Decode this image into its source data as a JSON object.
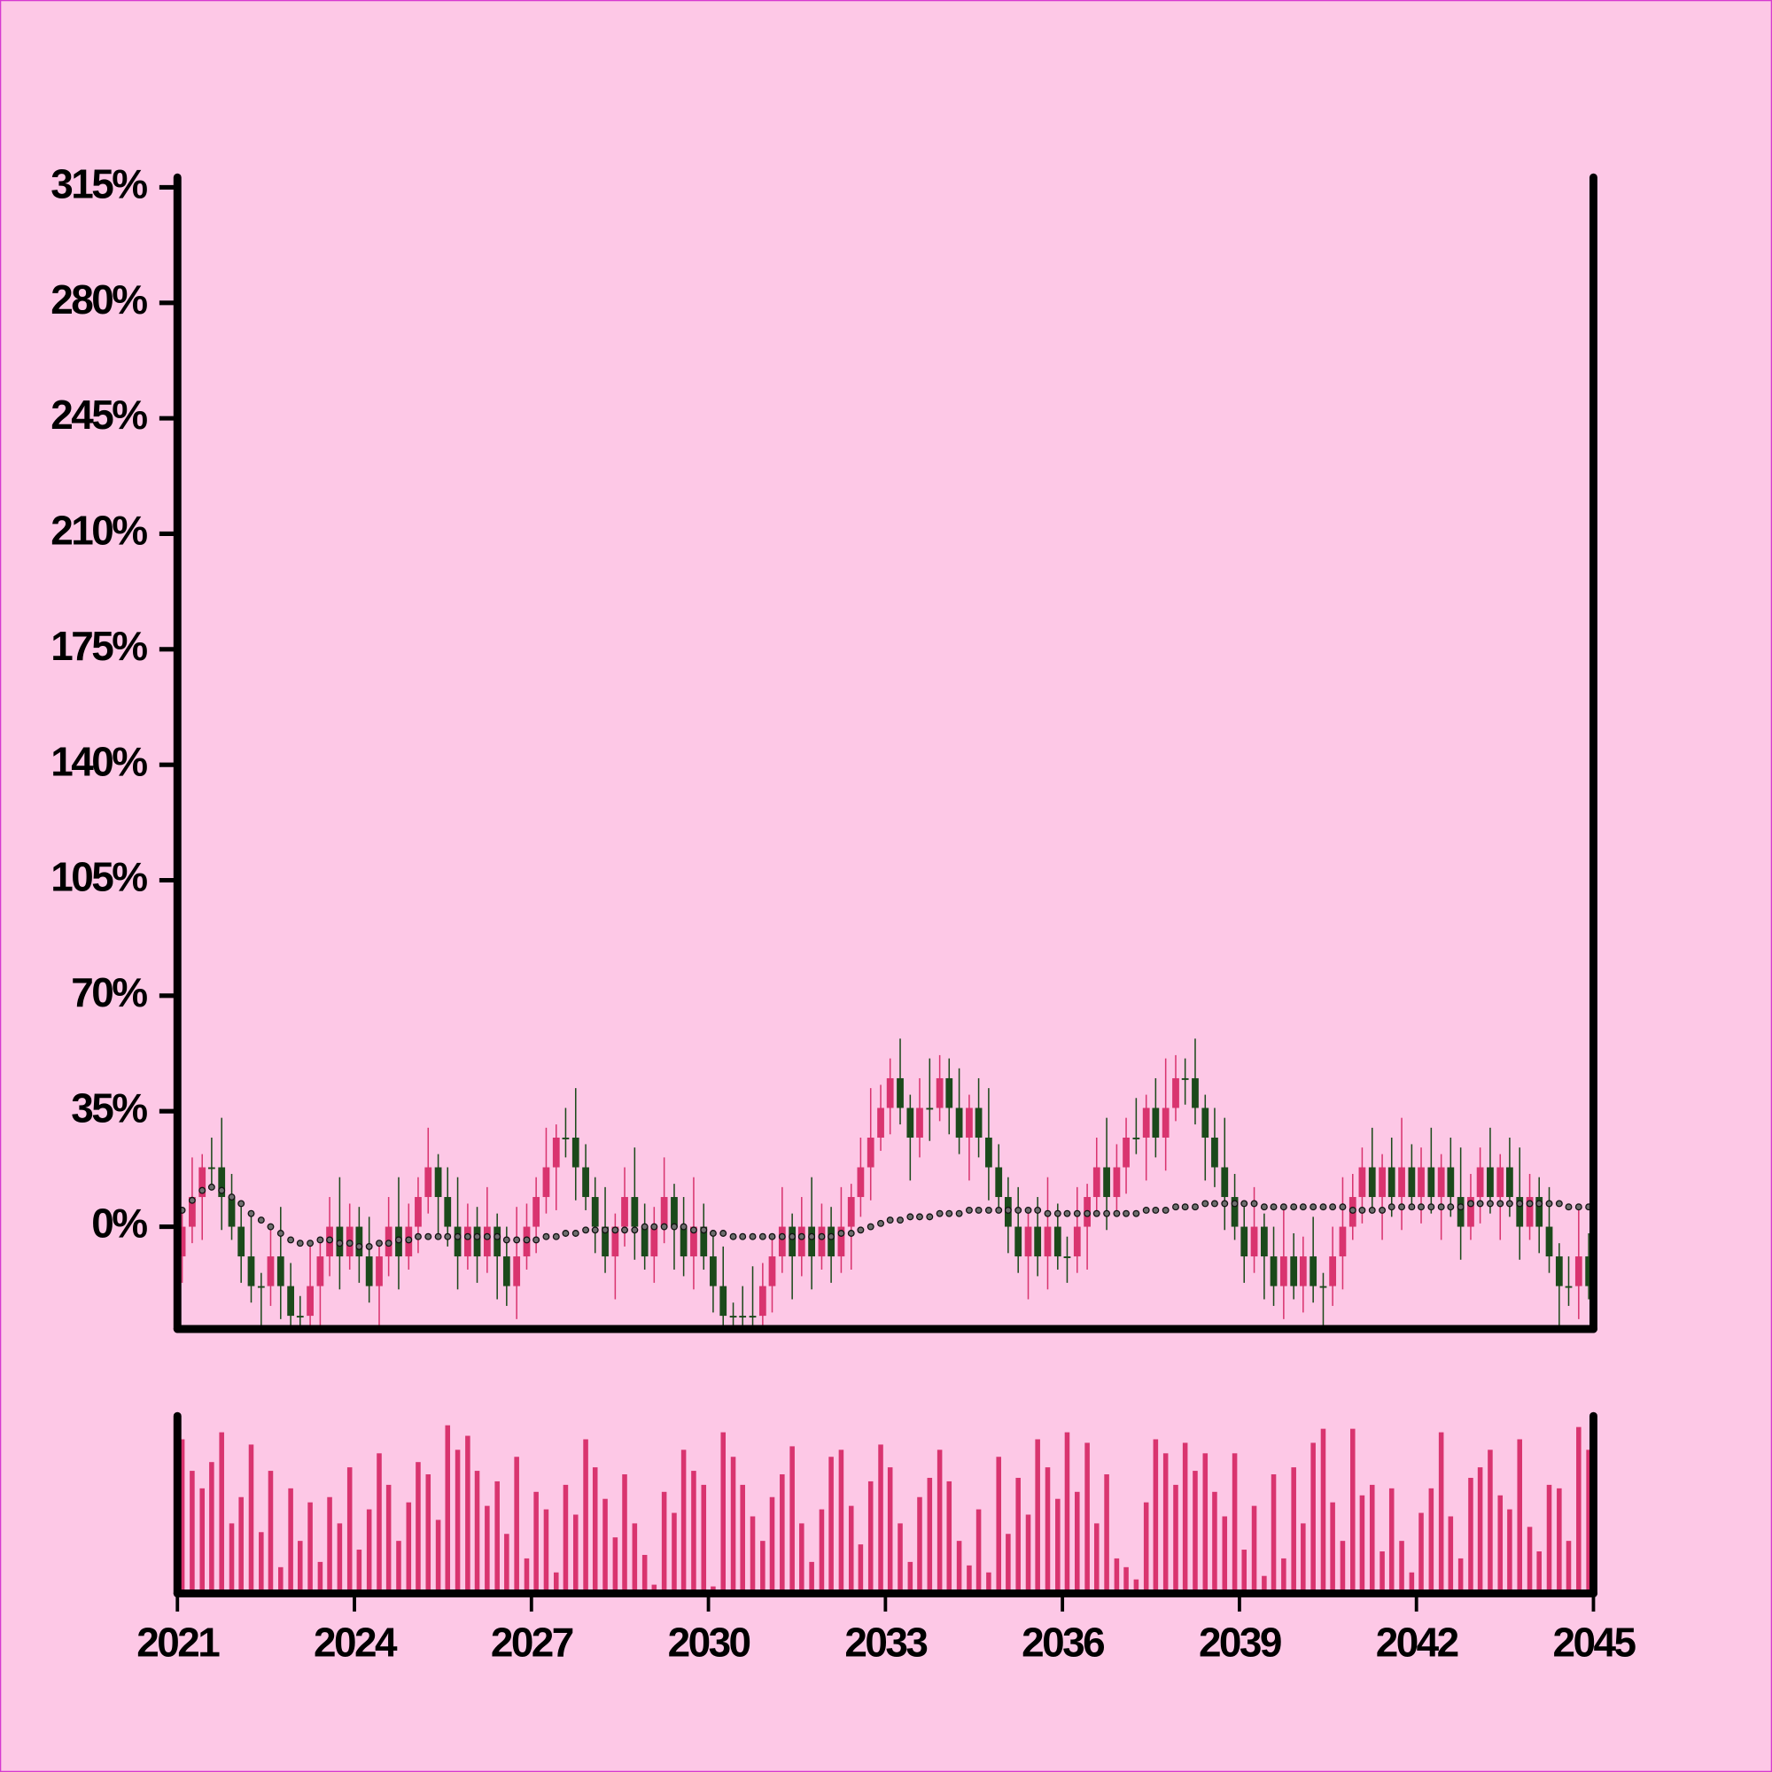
{
  "chart_data": {
    "type": "candlestick",
    "colors": {
      "up": "#d9346f",
      "down": "#1b4a1b",
      "volume": "#d9346f",
      "moving_average": "#6e6e6e"
    },
    "xlim": [
      2021,
      2045
    ],
    "xticks": [
      2021,
      2024,
      2027,
      2030,
      2033,
      2036,
      2039,
      2042,
      2045
    ],
    "ylim": [
      -31,
      318
    ],
    "yticks": [
      {
        "value": 0,
        "label": "0%"
      },
      {
        "value": 35,
        "label": "35%"
      },
      {
        "value": 70,
        "label": "70%"
      },
      {
        "value": 105,
        "label": "105%"
      },
      {
        "value": 140,
        "label": "140%"
      },
      {
        "value": 175,
        "label": "175%"
      },
      {
        "value": 210,
        "label": "210%"
      },
      {
        "value": 245,
        "label": "245%"
      },
      {
        "value": 280,
        "label": "280%"
      },
      {
        "value": 315,
        "label": "315%"
      }
    ],
    "volume_ylim": [
      0,
      100
    ],
    "x": [
      2021.08,
      2021.25,
      2021.42,
      2021.58,
      2021.75,
      2021.92,
      2022.08,
      2022.25,
      2022.42,
      2022.58,
      2022.75,
      2022.92,
      2023.08,
      2023.25,
      2023.42,
      2023.58,
      2023.75,
      2023.92,
      2024.08,
      2024.25,
      2024.42,
      2024.58,
      2024.75,
      2024.92,
      2025.08,
      2025.25,
      2025.42,
      2025.58,
      2025.75,
      2025.92,
      2026.08,
      2026.25,
      2026.42,
      2026.58,
      2026.75,
      2026.92,
      2027.08,
      2027.25,
      2027.42,
      2027.58,
      2027.75,
      2027.92,
      2028.08,
      2028.25,
      2028.42,
      2028.58,
      2028.75,
      2028.92,
      2029.08,
      2029.25,
      2029.42,
      2029.58,
      2029.75,
      2029.92,
      2030.08,
      2030.25,
      2030.42,
      2030.58,
      2030.75,
      2030.92,
      2031.08,
      2031.25,
      2031.42,
      2031.58,
      2031.75,
      2031.92,
      2032.08,
      2032.25,
      2032.42,
      2032.58,
      2032.75,
      2032.92,
      2033.08,
      2033.25,
      2033.42,
      2033.58,
      2033.75,
      2033.92,
      2034.08,
      2034.25,
      2034.42,
      2034.58,
      2034.75,
      2034.92,
      2035.08,
      2035.25,
      2035.42,
      2035.58,
      2035.75,
      2035.92,
      2036.08,
      2036.25,
      2036.42,
      2036.58,
      2036.75,
      2036.92,
      2037.08,
      2037.25,
      2037.42,
      2037.58,
      2037.75,
      2037.92,
      2038.08,
      2038.25,
      2038.42,
      2038.58,
      2038.75,
      2038.92,
      2039.08,
      2039.25,
      2039.42,
      2039.58,
      2039.75,
      2039.92,
      2040.08,
      2040.25,
      2040.42,
      2040.58,
      2040.75,
      2040.92,
      2041.08,
      2041.25,
      2041.42,
      2041.58,
      2041.75,
      2041.92,
      2042.08,
      2042.25,
      2042.42,
      2042.58,
      2042.75,
      2042.92,
      2043.08,
      2043.25,
      2043.42,
      2043.58,
      2043.75,
      2043.92,
      2044.08,
      2044.25,
      2044.42,
      2044.58,
      2044.75,
      2044.92
    ],
    "open": [
      -9,
      0,
      9,
      18,
      18,
      9,
      0,
      -9,
      -18,
      -18,
      -9,
      -18,
      -27,
      -27,
      -18,
      -9,
      0,
      -9,
      0,
      -9,
      -18,
      -9,
      0,
      -9,
      0,
      9,
      18,
      9,
      0,
      -9,
      0,
      -9,
      0,
      -9,
      -18,
      -9,
      0,
      9,
      18,
      27,
      27,
      18,
      9,
      0,
      -9,
      0,
      9,
      0,
      -9,
      0,
      9,
      0,
      -9,
      0,
      -9,
      -18,
      -27,
      -27,
      -27,
      -27,
      -18,
      -9,
      0,
      -9,
      0,
      -9,
      0,
      -9,
      0,
      9,
      18,
      27,
      36,
      45,
      36,
      27,
      36,
      36,
      45,
      36,
      27,
      36,
      27,
      18,
      9,
      0,
      -9,
      0,
      -9,
      0,
      -9,
      -9,
      0,
      9,
      18,
      9,
      18,
      27,
      27,
      36,
      27,
      36,
      45,
      45,
      36,
      27,
      18,
      9,
      0,
      -9,
      0,
      -9,
      -18,
      -9,
      -18,
      -9,
      -18,
      -18,
      -9,
      0,
      9,
      18,
      9,
      18,
      9,
      18,
      9,
      18,
      9,
      18,
      9,
      0,
      9,
      18,
      9,
      18,
      9,
      0,
      9,
      0,
      -9,
      -18,
      -18,
      -9
    ],
    "high": [
      6,
      21,
      22,
      27,
      33,
      16,
      6,
      3,
      -14,
      0,
      6,
      -11,
      -21,
      -6,
      -5,
      9,
      15,
      7,
      6,
      3,
      -5,
      9,
      15,
      7,
      15,
      30,
      22,
      18,
      15,
      7,
      6,
      12,
      4,
      0,
      6,
      7,
      15,
      30,
      31,
      36,
      42,
      25,
      15,
      12,
      4,
      18,
      24,
      7,
      6,
      21,
      13,
      9,
      15,
      7,
      -3,
      -6,
      -23,
      -18,
      -12,
      -11,
      -3,
      12,
      4,
      9,
      15,
      7,
      6,
      12,
      13,
      27,
      42,
      43,
      51,
      57,
      40,
      45,
      51,
      52,
      51,
      48,
      40,
      45,
      42,
      25,
      15,
      12,
      4,
      9,
      15,
      7,
      -3,
      12,
      13,
      27,
      33,
      25,
      33,
      39,
      40,
      45,
      51,
      52,
      51,
      57,
      40,
      36,
      33,
      16,
      6,
      12,
      4,
      0,
      6,
      -2,
      -3,
      3,
      -14,
      0,
      15,
      16,
      24,
      30,
      22,
      27,
      33,
      25,
      24,
      30,
      22,
      27,
      24,
      16,
      24,
      30,
      22,
      27,
      24,
      16,
      15,
      12,
      -5,
      -9,
      6,
      -2
    ],
    "low": [
      -17,
      -5,
      -4,
      12,
      -1,
      -4,
      -17,
      -23,
      -31,
      -24,
      -28,
      -31,
      -35,
      -32,
      -31,
      -15,
      -19,
      -13,
      -17,
      -23,
      -31,
      -15,
      -19,
      -13,
      -8,
      4,
      -4,
      -6,
      -19,
      -13,
      -17,
      -14,
      -22,
      -24,
      -28,
      -13,
      -8,
      4,
      5,
      21,
      8,
      5,
      -8,
      -14,
      -22,
      -6,
      -10,
      -13,
      -17,
      -5,
      -13,
      -15,
      -19,
      -13,
      -26,
      -32,
      -40,
      -33,
      -37,
      -31,
      -26,
      -14,
      -22,
      -15,
      -19,
      -13,
      -17,
      -14,
      -13,
      3,
      8,
      23,
      28,
      31,
      14,
      21,
      26,
      32,
      28,
      22,
      14,
      21,
      8,
      5,
      -8,
      -14,
      -22,
      -15,
      -19,
      -13,
      -17,
      -14,
      -13,
      3,
      -1,
      5,
      10,
      22,
      14,
      21,
      17,
      32,
      37,
      31,
      14,
      12,
      -1,
      -4,
      -17,
      -14,
      -22,
      -24,
      -28,
      -22,
      -26,
      -23,
      -31,
      -24,
      -19,
      -4,
      1,
      4,
      -4,
      3,
      -1,
      5,
      1,
      4,
      -4,
      3,
      -10,
      -4,
      1,
      4,
      -4,
      3,
      -10,
      -4,
      -8,
      -14,
      -31,
      -24,
      -28,
      -22
    ],
    "close": [
      0,
      9,
      18,
      18,
      9,
      0,
      -9,
      -18,
      -18,
      -9,
      -18,
      -27,
      -27,
      -18,
      -9,
      0,
      -9,
      0,
      -9,
      -18,
      -9,
      0,
      -9,
      0,
      9,
      18,
      9,
      0,
      -9,
      0,
      -9,
      0,
      -9,
      -18,
      -9,
      0,
      9,
      18,
      27,
      27,
      18,
      9,
      0,
      -9,
      0,
      9,
      0,
      -9,
      0,
      9,
      0,
      -9,
      0,
      -9,
      -18,
      -27,
      -27,
      -27,
      -27,
      -18,
      -9,
      0,
      -9,
      0,
      -9,
      0,
      -9,
      0,
      9,
      18,
      27,
      36,
      45,
      36,
      27,
      36,
      36,
      45,
      36,
      27,
      36,
      27,
      18,
      9,
      0,
      -9,
      0,
      -9,
      0,
      -9,
      -9,
      0,
      9,
      18,
      9,
      18,
      27,
      27,
      36,
      27,
      36,
      45,
      45,
      36,
      27,
      18,
      9,
      0,
      -9,
      0,
      -9,
      -18,
      -9,
      -18,
      -9,
      -18,
      -18,
      -9,
      0,
      9,
      18,
      9,
      18,
      9,
      18,
      9,
      18,
      9,
      18,
      9,
      0,
      9,
      18,
      9,
      18,
      9,
      0,
      9,
      0,
      -9,
      -18,
      -18,
      -9,
      -18
    ],
    "volume": [
      88,
      70,
      60,
      75,
      92,
      40,
      55,
      85,
      35,
      70,
      15,
      60,
      30,
      52,
      18,
      55,
      40,
      72,
      25,
      48,
      80,
      62,
      30,
      52,
      75,
      68,
      42,
      96,
      82,
      90,
      70,
      50,
      64,
      34,
      78,
      20,
      58,
      48,
      12,
      62,
      45,
      88,
      72,
      54,
      32,
      68,
      40,
      22,
      5,
      58,
      46,
      82,
      70,
      62,
      4,
      92,
      78,
      62,
      44,
      30,
      55,
      68,
      84,
      40,
      18,
      48,
      78,
      82,
      50,
      28,
      64,
      85,
      72,
      40,
      18,
      55,
      66,
      82,
      64,
      30,
      16,
      48,
      12,
      78,
      34,
      66,
      45,
      88,
      72,
      54,
      92,
      58,
      86,
      40,
      68,
      20,
      15,
      8,
      52,
      88,
      80,
      62,
      86,
      70,
      80,
      58,
      44,
      80,
      25,
      50,
      10,
      68,
      20,
      72,
      40,
      86,
      94,
      52,
      30,
      94,
      56,
      62,
      24,
      60,
      30,
      12,
      46,
      60,
      92,
      44,
      20,
      66,
      72,
      82,
      56,
      48,
      88,
      38,
      24,
      62,
      60,
      30,
      95,
      82
    ],
    "moving_average": [
      5,
      8,
      11,
      12,
      11,
      9,
      7,
      4,
      2,
      0,
      -2,
      -4,
      -5,
      -5,
      -4,
      -4,
      -5,
      -5,
      -6,
      -6,
      -5,
      -5,
      -4,
      -4,
      -3,
      -3,
      -3,
      -3,
      -3,
      -3,
      -3,
      -3,
      -3,
      -4,
      -4,
      -4,
      -4,
      -3,
      -3,
      -2,
      -2,
      -1,
      -1,
      -1,
      -1,
      -1,
      -1,
      0,
      0,
      0,
      0,
      0,
      -1,
      -1,
      -2,
      -2,
      -3,
      -3,
      -3,
      -3,
      -3,
      -3,
      -3,
      -3,
      -3,
      -3,
      -3,
      -2,
      -2,
      -1,
      0,
      1,
      2,
      2,
      3,
      3,
      3,
      4,
      4,
      4,
      5,
      5,
      5,
      5,
      5,
      5,
      5,
      5,
      4,
      4,
      4,
      4,
      4,
      4,
      4,
      4,
      4,
      4,
      5,
      5,
      5,
      6,
      6,
      6,
      7,
      7,
      7,
      7,
      7,
      7,
      6,
      6,
      6,
      6,
      6,
      6,
      6,
      6,
      6,
      5,
      5,
      5,
      5,
      6,
      6,
      6,
      6,
      6,
      6,
      6,
      6,
      7,
      7,
      7,
      7,
      7,
      7,
      7,
      7,
      7,
      7,
      6,
      6,
      6
    ]
  }
}
